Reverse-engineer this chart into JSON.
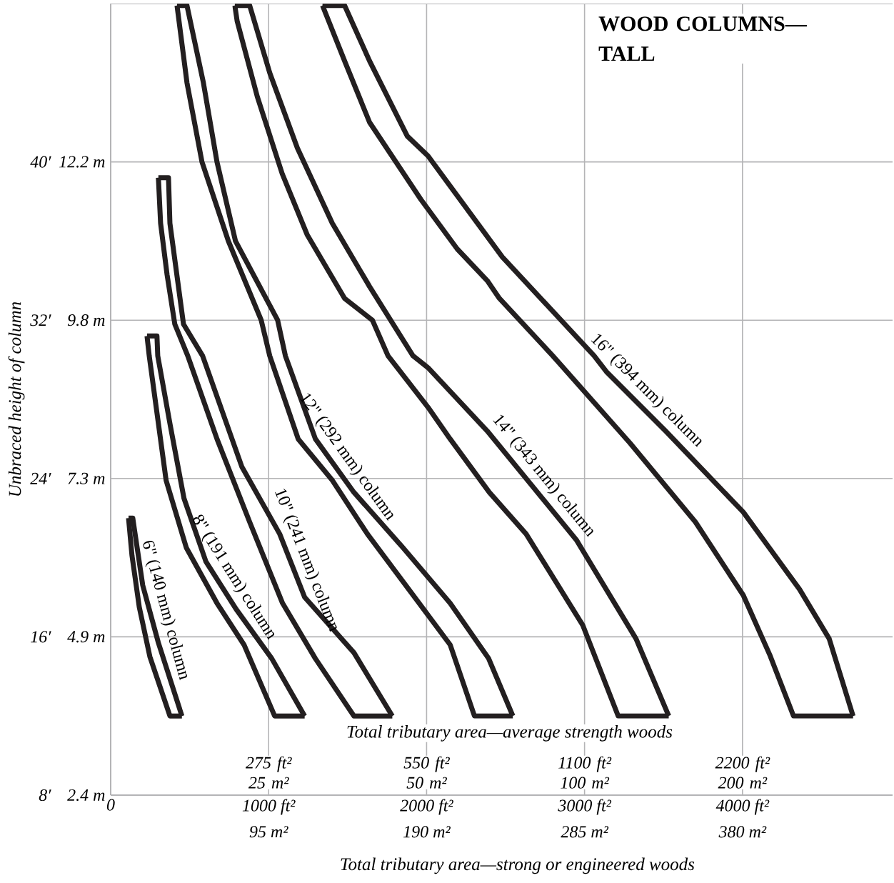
{
  "chart_data": {
    "type": "line",
    "title": "WOOD COLUMNS—TALL",
    "xlabel": "Total tributary area—strong or engineered woods",
    "ylabel": "Unbraced height of column",
    "annotations": [
      "Total tributary area—average strength woods",
      "275 ft² 25 m²",
      "550 ft² 50 m²",
      "1100 ft² 100 m²",
      "2200 ft² 200 m²"
    ],
    "xlim": [
      0,
      4950
    ],
    "ylim": [
      8,
      48
    ],
    "xticks": [
      0,
      {
        "value": 1000,
        "label": "1000 ft²"
      },
      {
        "value": 2000,
        "label": "2000 ft²"
      },
      {
        "value": 3000,
        "label": "3000 ft²"
      },
      {
        "value": 4000,
        "label": "4000 ft²"
      }
    ],
    "x2lim": [
      0,
      470.25
    ],
    "x2ticks": [
      {
        "value": 95,
        "label": "95 m²"
      },
      {
        "value": 190,
        "label": "190 m²"
      },
      {
        "value": 285,
        "label": "285 m²"
      },
      {
        "value": 380,
        "label": "380 m²"
      }
    ],
    "yticks": [
      {
        "value": 8,
        "label": "8′"
      },
      {
        "value": 16,
        "label": "16′"
      },
      {
        "value": 24,
        "label": "24′"
      },
      {
        "value": 32,
        "label": "32′"
      },
      {
        "value": 40,
        "label": "40′"
      }
    ],
    "y2lim": [
      2.438,
      14.63
    ],
    "y2ticks": [
      {
        "value": 2.438,
        "label": "2.4 m"
      },
      {
        "value": 4.877,
        "label": "4.9 m"
      },
      {
        "value": 7.315,
        "label": "7.3 m"
      },
      {
        "value": 9.754,
        "label": "9.8 m"
      },
      {
        "value": 12.192,
        "label": "12.2 m"
      }
    ],
    "grid": true,
    "line_style": "solid",
    "series": [
      {
        "color": "#231f20",
        "x": [
          113,
          135,
          181,
          248,
          375,
          451
        ],
        "values": [
          22,
          20.1,
          17.5,
          15,
          12,
          12
        ]
      },
      {
        "name": "6\" (140 mm) column",
        "color": "#231f20",
        "x": [
          113,
          140,
          149,
          203,
          302,
          451
        ],
        "values": [
          22,
          22,
          21.5,
          18.6,
          15.7,
          12
        ]
      },
      {
        "color": "#231f20",
        "x": [
          230,
          244,
          351,
          479,
          673,
          844,
          1038,
          1228
        ],
        "values": [
          31.2,
          30.2,
          23.9,
          20.5,
          17.7,
          15.6,
          12,
          12
        ]
      },
      {
        "name": "8\" (191 mm) column",
        "color": "#231f20",
        "x": [
          230,
          293,
          298,
          377,
          464,
          603,
          794,
          1020,
          1228
        ],
        "values": [
          31.2,
          31.2,
          30.2,
          26.7,
          23.0,
          19.8,
          17.4,
          14.9,
          12
        ]
      },
      {
        "color": "#231f20",
        "x": [
          302,
          316,
          357,
          406,
          488,
          673,
          880,
          1088,
          1296,
          1540,
          1783
        ],
        "values": [
          39.2,
          36.9,
          34.3,
          31.8,
          30.2,
          26.0,
          21.8,
          17.7,
          14.9,
          12,
          12
        ]
      },
      {
        "name": "10\" (241 mm) column",
        "color": "#231f20",
        "x": [
          302,
          366,
          375,
          461,
          582,
          830,
          1070,
          1228,
          1540,
          1783
        ],
        "values": [
          39.2,
          39.2,
          36.9,
          31.8,
          30.2,
          24.6,
          21.2,
          18.0,
          15.2,
          12
        ]
      },
      {
        "color": "#231f20",
        "x": [
          420,
          483,
          578,
          745,
          953,
          1007,
          1187,
          1404,
          1625,
          1887,
          2149,
          2303,
          2546
        ],
        "values": [
          47.9,
          44.0,
          40.0,
          36.0,
          32.0,
          30.2,
          26.0,
          23.9,
          21.2,
          18.4,
          15.6,
          12,
          12
        ]
      },
      {
        "name": "12\" (292 mm) column",
        "color": "#231f20",
        "x": [
          420,
          483,
          587,
          673,
          790,
          1057,
          1106,
          1296,
          1540,
          1851,
          2149,
          2393,
          2546
        ],
        "values": [
          47.9,
          47.9,
          44.0,
          40.0,
          36.0,
          32.0,
          30.2,
          26.0,
          23.3,
          20.5,
          17.7,
          14.9,
          12
        ]
      },
      {
        "color": "#231f20",
        "x": [
          786,
          801,
          928,
          1086,
          1245,
          1481,
          1657,
          1756,
          2009,
          2149,
          2397,
          2630,
          2988,
          3213,
          3533
        ],
        "values": [
          47.9,
          47.1,
          43.3,
          39.4,
          36.3,
          33.1,
          32.0,
          30.2,
          27.6,
          26.0,
          23.3,
          21.2,
          16.6,
          12,
          12
        ]
      },
      {
        "name": "14\" (343 mm) column",
        "color": "#231f20",
        "x": [
          786,
          880,
          1007,
          1182,
          1403,
          1639,
          1914,
          2009,
          2384,
          2948,
          3326,
          3533
        ],
        "values": [
          47.9,
          47.9,
          44.5,
          40.7,
          36.9,
          33.7,
          30.2,
          29.6,
          26.4,
          20.9,
          15.9,
          12
        ]
      },
      {
        "color": "#231f20",
        "x": [
          1341,
          1481,
          1639,
          1964,
          2194,
          2384,
          2461,
          2799,
          3287,
          3702,
          4005,
          4172,
          4323,
          4700
        ],
        "values": [
          47.9,
          45.1,
          42.0,
          38.1,
          35.6,
          34.0,
          33.1,
          30.2,
          25.8,
          21.8,
          18.1,
          15.1,
          12,
          12
        ]
      },
      {
        "name": "16\" (394 mm) column",
        "color": "#231f20",
        "x": [
          1341,
          1481,
          1639,
          1878,
          2009,
          2479,
          3061,
          3138,
          3513,
          4005,
          4361,
          4549,
          4700
        ],
        "values": [
          47.9,
          47.9,
          45.1,
          41.3,
          40.3,
          35.2,
          30.2,
          29.4,
          26.4,
          22.3,
          18.4,
          15.9,
          12
        ]
      }
    ]
  }
}
